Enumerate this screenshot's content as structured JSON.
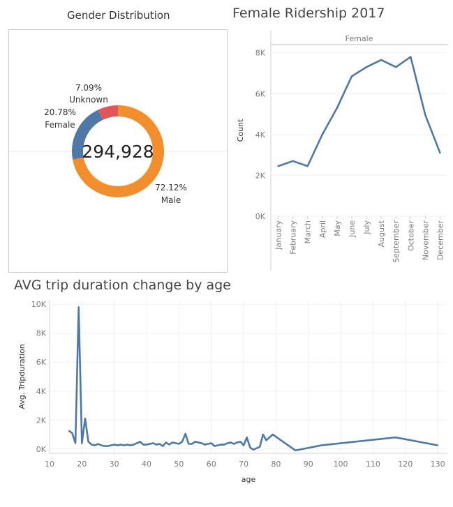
{
  "chart_data": [
    {
      "type": "pie",
      "title": "Gender Distribution",
      "total_label": "294,928",
      "slices": [
        {
          "name": "Male",
          "percent_label": "72.12%",
          "value": 72.12,
          "color": "#f28e2b"
        },
        {
          "name": "Female",
          "percent_label": "20.78%",
          "value": 20.78,
          "color": "#4e79a7"
        },
        {
          "name": "Unknown",
          "percent_label": "7.09%",
          "value": 7.09,
          "color": "#e15759"
        }
      ]
    },
    {
      "type": "line",
      "title": "Female Ridership 2017",
      "header": "Female",
      "ylabel": "Count",
      "categories": [
        "January",
        "February",
        "March",
        "April",
        "May",
        "June",
        "July",
        "August",
        "September",
        "October",
        "November",
        "December"
      ],
      "values": [
        2450,
        2700,
        2450,
        4000,
        5300,
        6850,
        7300,
        7650,
        7300,
        7800,
        4950,
        3100
      ],
      "ylim": [
        0,
        8400
      ],
      "yticks": [
        {
          "v": 0,
          "label": "0K"
        },
        {
          "v": 2000,
          "label": "2K"
        },
        {
          "v": 4000,
          "label": "4K"
        },
        {
          "v": 6000,
          "label": "6K"
        },
        {
          "v": 8000,
          "label": "8K"
        }
      ],
      "color": "#4e79a7"
    },
    {
      "type": "line",
      "title": "AVG trip duration change by age",
      "xlabel": "age",
      "ylabel": "Avg. Tripduration",
      "xlim": [
        10,
        133
      ],
      "ylim": [
        -300,
        10300
      ],
      "xticks": [
        10,
        20,
        30,
        40,
        50,
        60,
        70,
        80,
        90,
        100,
        110,
        120,
        130
      ],
      "yticks": [
        {
          "v": 0,
          "label": "0K"
        },
        {
          "v": 2000,
          "label": "2K"
        },
        {
          "v": 4000,
          "label": "4K"
        },
        {
          "v": 6000,
          "label": "6K"
        },
        {
          "v": 8000,
          "label": "8K"
        },
        {
          "v": 10000,
          "label": "10K"
        }
      ],
      "color": "#4e79a7",
      "x": [
        16,
        17,
        18,
        19,
        20,
        21,
        22,
        23,
        24,
        25,
        26,
        27,
        28,
        29,
        30,
        31,
        32,
        33,
        34,
        35,
        36,
        37,
        38,
        39,
        40,
        41,
        42,
        43,
        44,
        45,
        46,
        47,
        48,
        49,
        50,
        51,
        52,
        53,
        54,
        55,
        56,
        57,
        58,
        59,
        60,
        61,
        62,
        63,
        64,
        65,
        66,
        67,
        68,
        69,
        70,
        71,
        72,
        73,
        75,
        76,
        77,
        79,
        86,
        94,
        117,
        130
      ],
      "y": [
        1250,
        1100,
        400,
        9800,
        400,
        2100,
        500,
        300,
        250,
        350,
        250,
        200,
        200,
        250,
        300,
        250,
        300,
        250,
        300,
        250,
        300,
        400,
        500,
        300,
        300,
        350,
        400,
        300,
        350,
        200,
        450,
        300,
        450,
        400,
        350,
        500,
        1050,
        350,
        350,
        500,
        450,
        400,
        300,
        350,
        400,
        200,
        250,
        300,
        300,
        400,
        450,
        350,
        450,
        500,
        250,
        800,
        100,
        -50,
        150,
        1000,
        600,
        1000,
        -100,
        250,
        800,
        250
      ]
    }
  ]
}
